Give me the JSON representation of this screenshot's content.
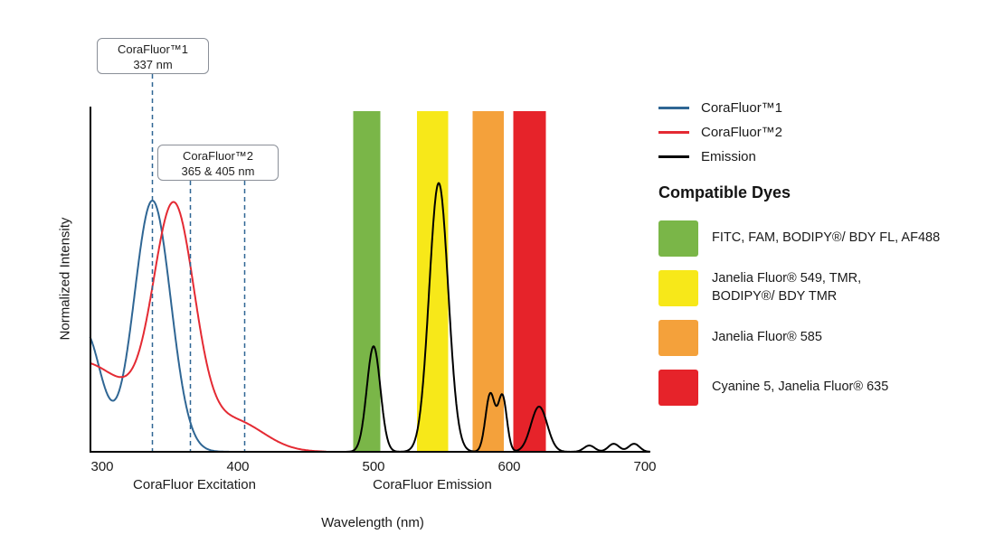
{
  "chart_data": {
    "type": "line",
    "title": "",
    "xlabel": "Wavelength (nm)",
    "ylabel": "Normalized Intensity",
    "x_ticks": [
      300,
      400,
      500,
      600,
      700
    ],
    "x_range": [
      291,
      704
    ],
    "ylim": [
      0,
      1.15
    ],
    "grid": false,
    "x_axis_group_labels": [
      {
        "label": "CoraFluor Excitation"
      },
      {
        "label": "CoraFluor Emission"
      }
    ],
    "annotation_line_color": "#2f6694",
    "annotations": [
      {
        "title": "CoraFluor™1",
        "subtitle": "337 nm",
        "lines_nm": [
          337
        ]
      },
      {
        "title": "CoraFluor™2",
        "subtitle": "365 & 405 nm",
        "lines_nm": [
          365,
          405
        ]
      }
    ],
    "filter_bands": [
      {
        "name": "green",
        "from_nm": 485,
        "to_nm": 505,
        "color": "#7ab648"
      },
      {
        "name": "yellow",
        "from_nm": 532,
        "to_nm": 555,
        "color": "#f7e819"
      },
      {
        "name": "orange",
        "from_nm": 573,
        "to_nm": 596,
        "color": "#f4a13b"
      },
      {
        "name": "red",
        "from_nm": 603,
        "to_nm": 627,
        "color": "#e6232a"
      }
    ],
    "series": [
      {
        "id": "corafluor1-excitation",
        "name": "CoraFluor™1",
        "color": "#2f6694",
        "domain": [
          291,
          435
        ],
        "gaussian_peaks": [
          [
            287,
            0.48,
            12
          ],
          [
            337,
            1.0,
            13.5
          ]
        ]
      },
      {
        "id": "corafluor2-excitation",
        "name": "CoraFluor™2",
        "color": "#e42a33",
        "domain": [
          291,
          465
        ],
        "gaussian_peaks": [
          [
            283,
            0.36,
            40
          ],
          [
            353,
            0.9,
            15
          ],
          [
            397,
            0.12,
            22
          ]
        ]
      },
      {
        "id": "emission",
        "name": "Emission",
        "color": "#000000",
        "domain": [
          455,
          704
        ],
        "gaussian_peaks": [
          [
            500,
            0.42,
            5
          ],
          [
            548,
            1.07,
            7
          ],
          [
            586,
            0.23,
            3.5
          ],
          [
            595,
            0.22,
            3.2
          ],
          [
            622,
            0.18,
            6
          ],
          [
            659,
            0.025,
            4
          ],
          [
            677,
            0.032,
            4
          ],
          [
            692,
            0.032,
            4
          ]
        ]
      }
    ]
  },
  "legend": {
    "items": [
      {
        "label": "CoraFluor™1",
        "color": "#2f6694"
      },
      {
        "label": "CoraFluor™2",
        "color": "#e42a33"
      },
      {
        "label": "Emission",
        "color": "#000000"
      }
    ],
    "dyes_title": "Compatible Dyes",
    "dyes": [
      {
        "name": "green-filter-dyes",
        "color": "#7ab648",
        "lines": [
          "FITC, FAM, BODIPY®/ BDY FL, AF488"
        ]
      },
      {
        "name": "yellow-filter-dyes",
        "color": "#f7e819",
        "lines": [
          "Janelia Fluor® 549, TMR,",
          "BODIPY®/ BDY TMR"
        ]
      },
      {
        "name": "orange-filter-dyes",
        "color": "#f4a13b",
        "lines": [
          "Janelia Fluor® 585"
        ]
      },
      {
        "name": "red-filter-dyes",
        "color": "#e6232a",
        "lines": [
          "Cyanine 5, Janelia Fluor® 635"
        ]
      }
    ]
  }
}
